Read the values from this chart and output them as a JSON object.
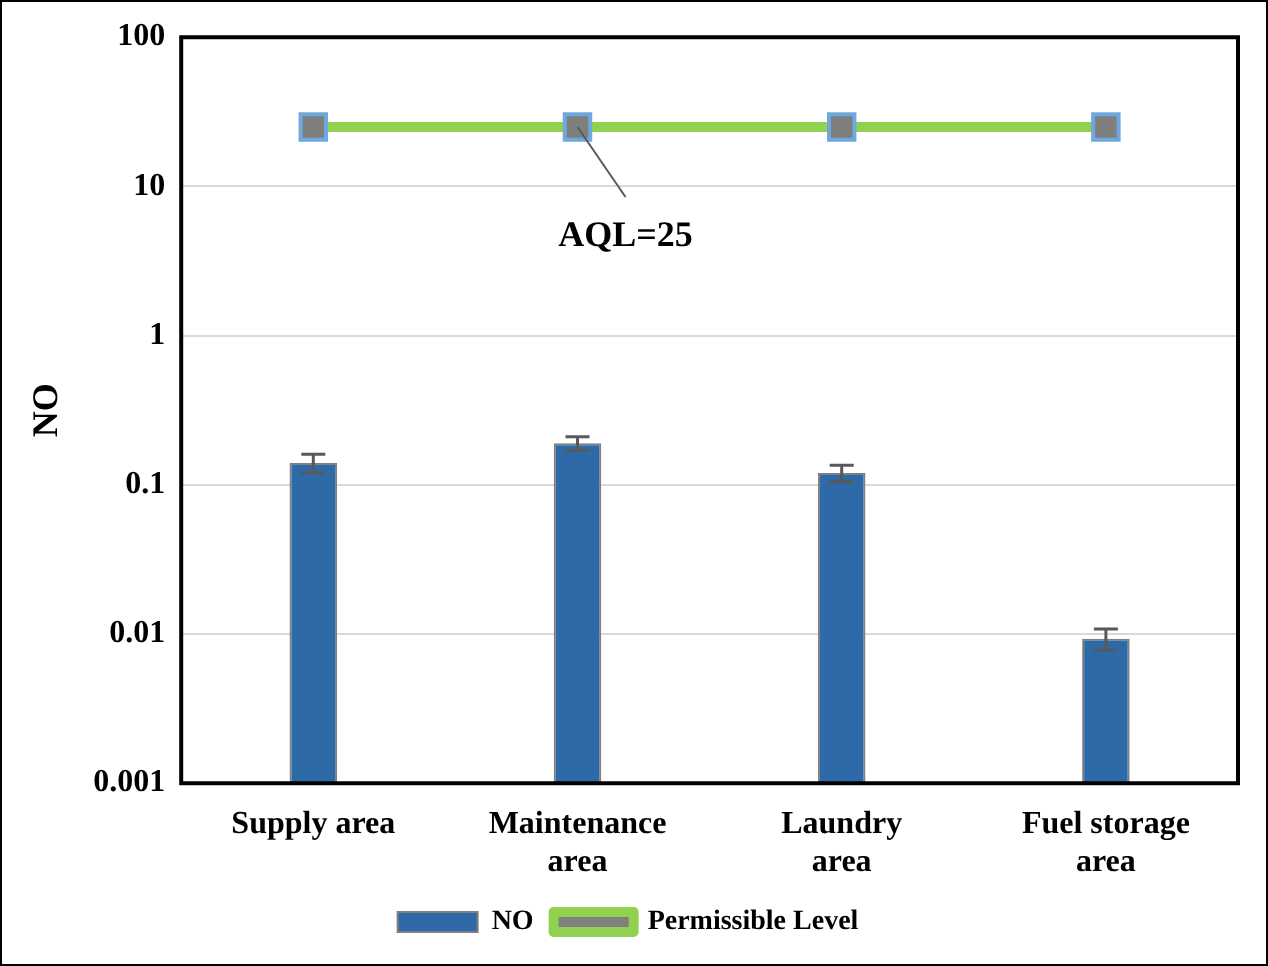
{
  "chart_data": {
    "type": "bar",
    "ylabel": "NO",
    "categories": [
      "Supply area",
      "Maintenance area",
      "Laundry area",
      "Fuel storage area"
    ],
    "series": [
      {
        "name": "NO",
        "color": "#2e6aa8",
        "values": [
          0.14,
          0.19,
          0.12,
          0.0093
        ],
        "errors": [
          0.02,
          0.02,
          0.015,
          0.0015
        ]
      },
      {
        "name": "Permissible Level",
        "type": "line",
        "color": "#92d050",
        "values": [
          25,
          25,
          25,
          25
        ],
        "marker": "square"
      }
    ],
    "log": "y",
    "ylim": [
      0.001,
      100
    ],
    "yticks": [
      0.001,
      0.01,
      0.1,
      1,
      10,
      100
    ],
    "grid": "y",
    "legend": "bottom",
    "annotations": [
      {
        "text": "AQL=25",
        "x": "Maintenance area",
        "y": 25
      }
    ]
  }
}
